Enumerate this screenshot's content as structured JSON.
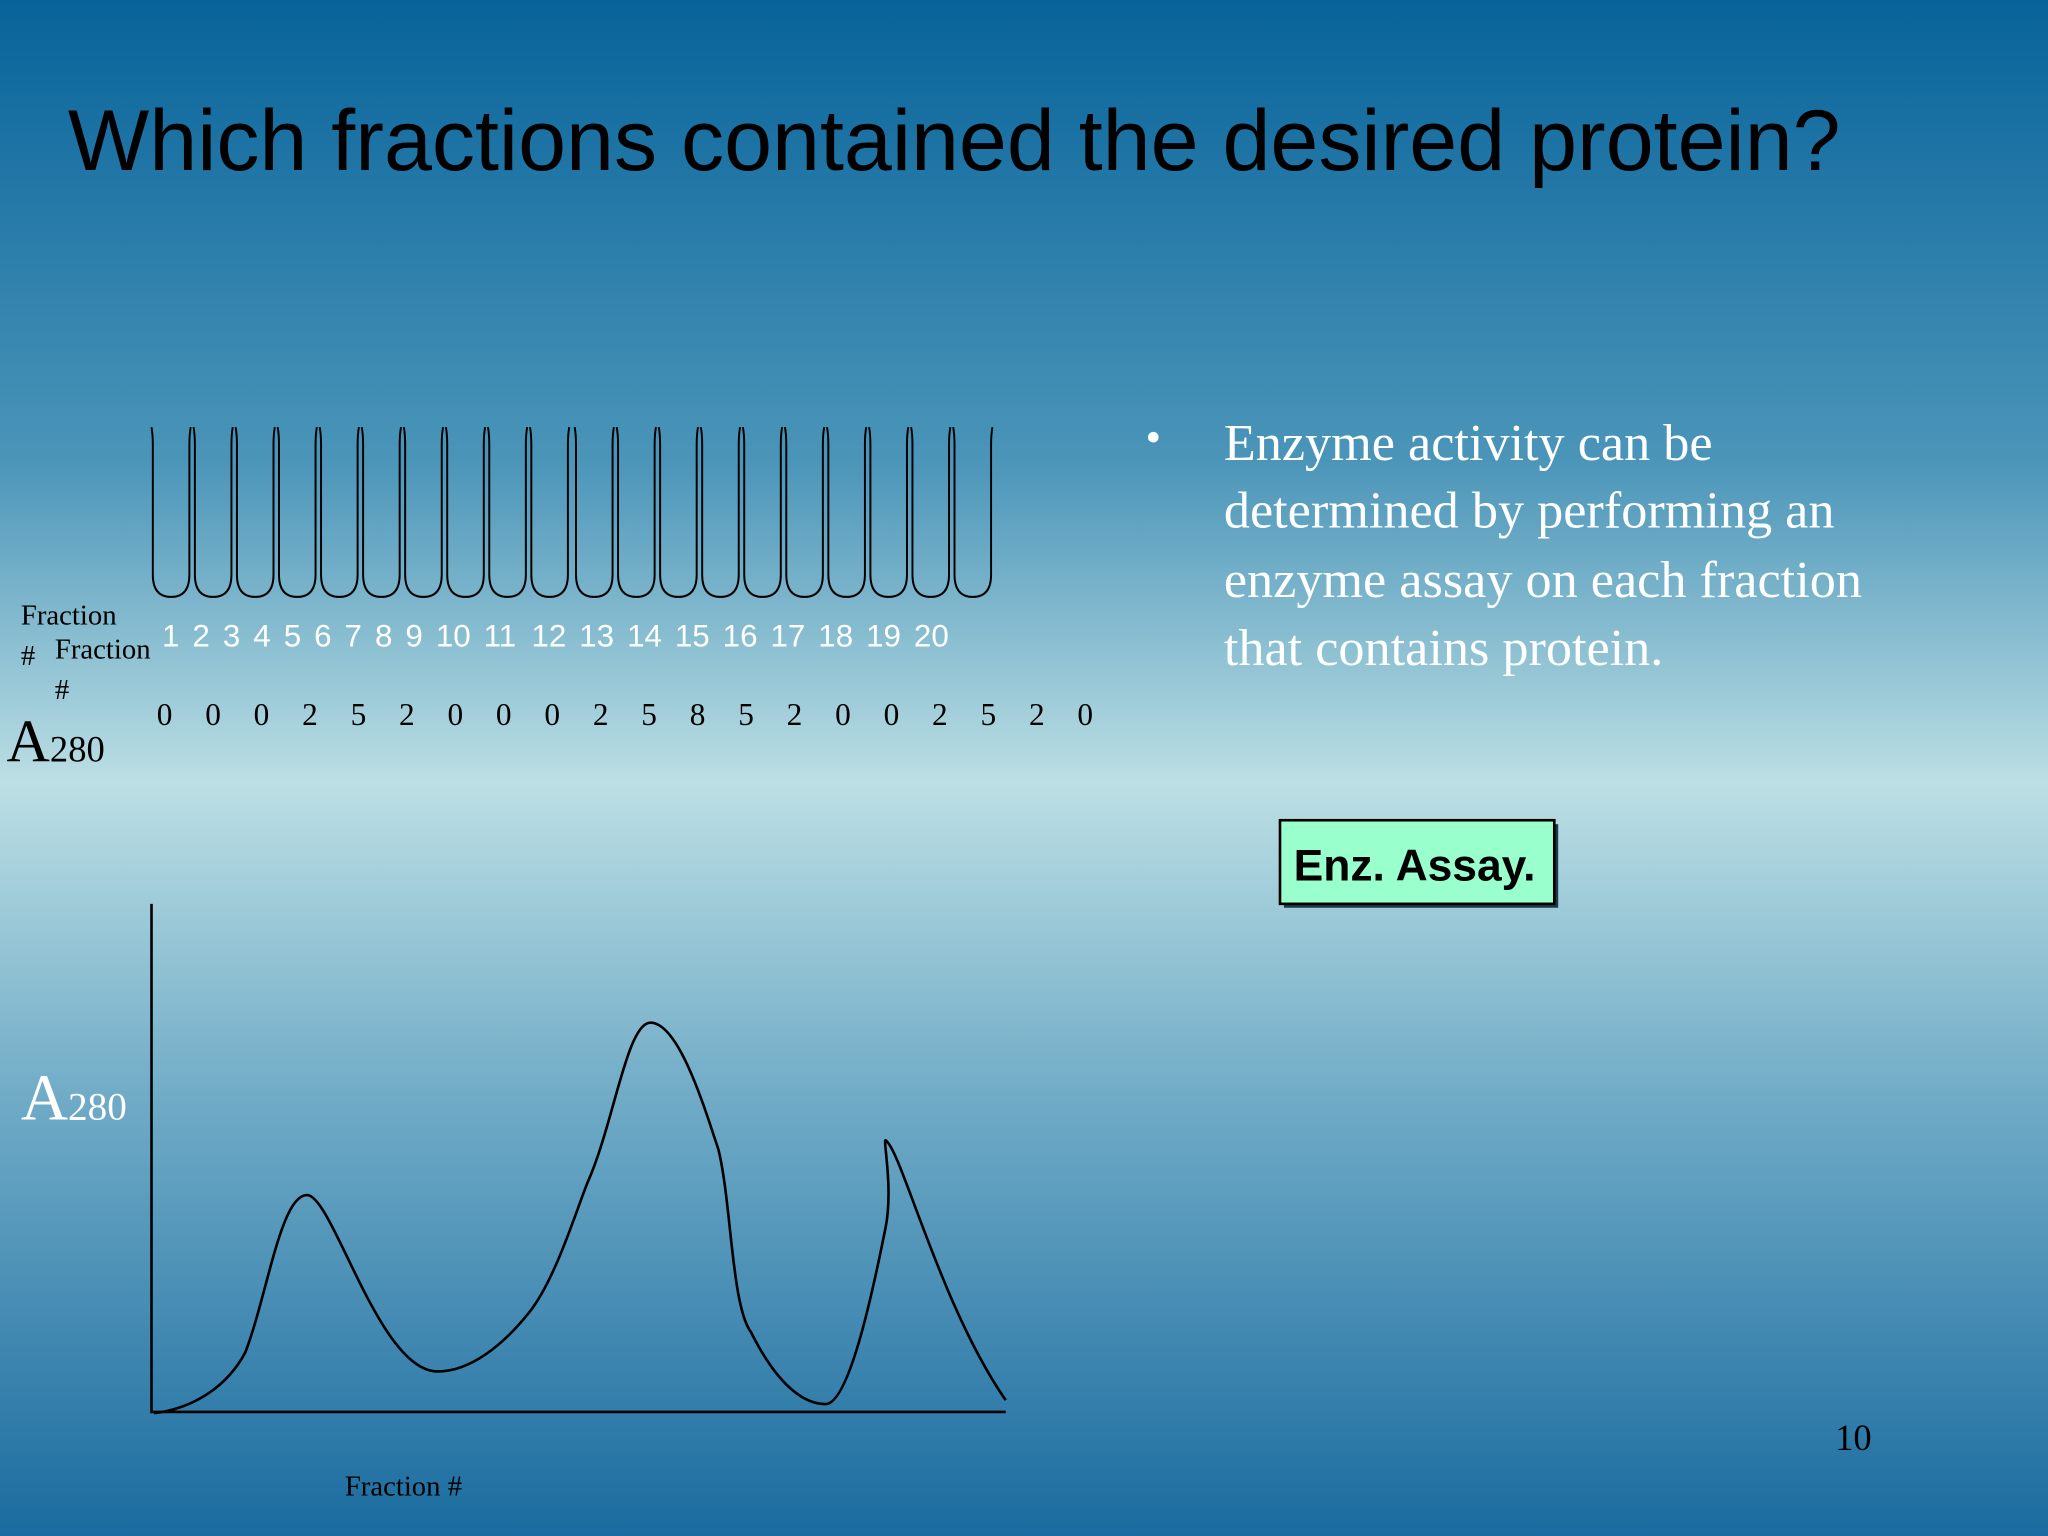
{
  "slide": {
    "title": "Which fractions contained the desired protein?",
    "fraction_label_left": {
      "lines": [
        "Fraction",
        "#"
      ]
    },
    "fraction_label_right": {
      "lines": [
        "Fraction",
        "#"
      ]
    },
    "fractions": [
      "1",
      "2",
      "3",
      "4",
      "5",
      "6",
      "7",
      "8",
      "9",
      "10",
      "11",
      "12",
      "13",
      "14",
      "15",
      "16",
      "17",
      "18",
      "19",
      "20"
    ],
    "a280_label": {
      "main": "A",
      "sub": "280"
    },
    "a280_values": [
      "0",
      "0",
      "0",
      "2",
      "5",
      "2",
      "0",
      "0",
      "0",
      "2",
      "5",
      "8",
      "5",
      "2",
      "0",
      "0",
      "2",
      "5",
      "2",
      "0"
    ],
    "bullet": {
      "marker": "•",
      "lines": [
        "Enzyme activity can be",
        "determined by performing an",
        "enzyme assay on each fraction",
        "that contains protein."
      ]
    },
    "button": "Enz. Assay.",
    "graph": {
      "y_label": {
        "main": "A",
        "sub": "280"
      },
      "x_label": "Fraction #"
    },
    "page_number": "10"
  }
}
